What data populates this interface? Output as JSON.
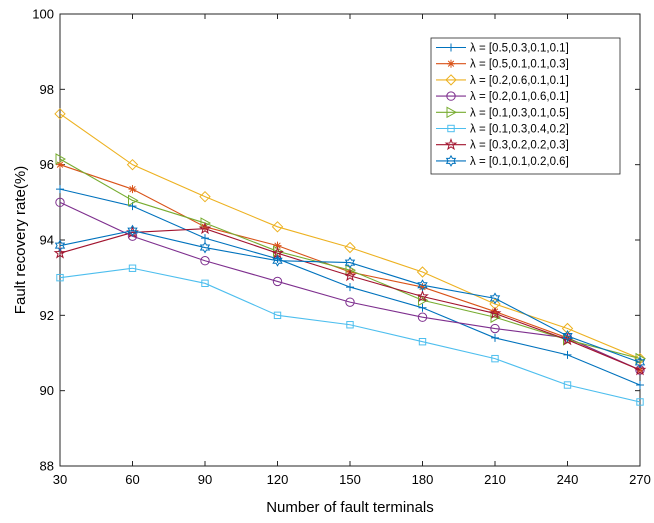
{
  "chart_data": {
    "type": "line",
    "x": [
      30,
      60,
      90,
      120,
      150,
      180,
      210,
      240,
      270
    ],
    "xlabel": "Number of fault terminals",
    "ylabel": "Fault recovery rate(%)",
    "xlim": [
      30,
      270
    ],
    "ylim": [
      88,
      100
    ],
    "xticks": [
      30,
      60,
      90,
      120,
      150,
      180,
      210,
      240,
      270
    ],
    "yticks": [
      88,
      90,
      92,
      94,
      96,
      98,
      100
    ],
    "grid": false,
    "legend_position": "top-right",
    "series": [
      {
        "name": "λ = [0.5,0.3,0.1,0.1]",
        "color": "#0072BD",
        "marker": "plus",
        "values": [
          95.35,
          94.9,
          94.05,
          93.5,
          92.75,
          92.2,
          91.4,
          90.95,
          90.15
        ]
      },
      {
        "name": "λ = [0.5,0.1,0.1,0.3]",
        "color": "#D95319",
        "marker": "asterisk",
        "values": [
          96.0,
          95.35,
          94.35,
          93.85,
          93.15,
          92.75,
          92.1,
          91.4,
          90.55
        ]
      },
      {
        "name": "λ = [0.2,0.6,0.1,0.1]",
        "color": "#EDB120",
        "marker": "diamond",
        "values": [
          97.35,
          96.0,
          95.15,
          94.35,
          93.8,
          93.15,
          92.3,
          91.65,
          90.85
        ]
      },
      {
        "name": "λ = [0.2,0.1,0.6,0.1]",
        "color": "#7E2F8E",
        "marker": "circle",
        "values": [
          95.0,
          94.1,
          93.45,
          92.9,
          92.35,
          91.95,
          91.65,
          91.4,
          90.55
        ]
      },
      {
        "name": "λ = [0.1,0.3,0.1,0.5]",
        "color": "#77AC30",
        "marker": "triangle-right",
        "values": [
          96.15,
          95.05,
          94.45,
          93.7,
          93.2,
          92.4,
          91.95,
          91.35,
          90.85
        ]
      },
      {
        "name": "λ = [0.1,0.3,0.4,0.2]",
        "color": "#4DBEEE",
        "marker": "square",
        "values": [
          93.0,
          93.25,
          92.85,
          92.0,
          91.75,
          91.3,
          90.85,
          90.15,
          89.7
        ]
      },
      {
        "name": "λ = [0.3,0.2,0.2,0.3]",
        "color": "#A2142F",
        "marker": "pentagram",
        "values": [
          93.65,
          94.2,
          94.3,
          93.65,
          93.05,
          92.5,
          92.05,
          91.35,
          90.55
        ]
      },
      {
        "name": "λ = [0.1,0.1,0.2,0.6]",
        "color": "#0072BD",
        "marker": "hexagram",
        "values": [
          93.85,
          94.25,
          93.8,
          93.45,
          93.4,
          92.8,
          92.45,
          91.45,
          90.75
        ]
      }
    ]
  }
}
